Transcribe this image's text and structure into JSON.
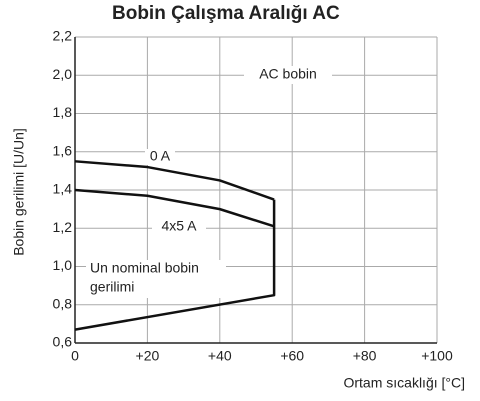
{
  "chart_data": {
    "type": "line",
    "title": "Bobin Çalışma Aralığı AC",
    "y_label": "Bobin gerilimi [U/Un]",
    "x_label": "Ortam sıcaklığı [°C]",
    "annotations": [
      "AC bobin",
      "Un nominal bobin",
      "gerilimi"
    ],
    "series": [
      {
        "name": "0 A",
        "color": "#111111",
        "x": [
          0,
          20,
          40,
          55
        ],
        "values": [
          1.55,
          1.52,
          1.45,
          1.35
        ]
      },
      {
        "name": "4x5 A",
        "color": "#111111",
        "x": [
          0,
          20,
          40,
          55
        ],
        "values": [
          1.4,
          1.37,
          1.3,
          1.21
        ]
      },
      {
        "color": "#111111",
        "x": [
          0,
          55,
          55
        ],
        "values": [
          0.67,
          0.85,
          1.35
        ]
      }
    ],
    "xlim": [
      0,
      100
    ],
    "xticks": [
      0,
      {
        "value": 20,
        "label": "+20"
      },
      {
        "value": 40,
        "label": "+40"
      },
      {
        "value": 60,
        "label": "+60"
      },
      {
        "value": 80,
        "label": "+80"
      },
      {
        "value": 100,
        "label": "+100"
      }
    ],
    "ylim": [
      0.6,
      2.2
    ],
    "yticks": [
      {
        "value": 0.6,
        "label": "0,6"
      },
      {
        "value": 0.8,
        "label": "0,8"
      },
      {
        "value": 1.0,
        "label": "1,0"
      },
      {
        "value": 1.2,
        "label": "1,2"
      },
      {
        "value": 1.4,
        "label": "1,4"
      },
      {
        "value": 1.6,
        "label": "1,6"
      },
      {
        "value": 1.8,
        "label": "1,8"
      },
      {
        "value": 2.0,
        "label": "2,0"
      },
      {
        "value": 2.2,
        "label": "2,2"
      }
    ],
    "grid": true
  }
}
